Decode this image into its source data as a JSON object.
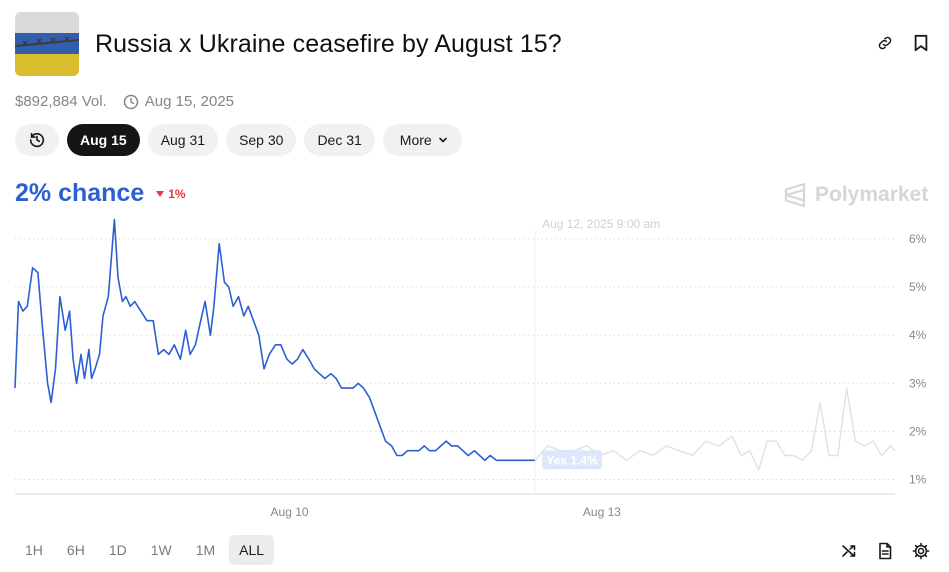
{
  "market": {
    "title": "Russia x Ukraine ceasefire by August 15?",
    "volume": "$892,884 Vol.",
    "end_date": "Aug 15, 2025"
  },
  "date_tabs": [
    "Aug 15",
    "Aug 31",
    "Sep 30",
    "Dec 31"
  ],
  "more_label": "More",
  "active_date_tab": "Aug 15",
  "chance": {
    "value": "2% chance",
    "delta": "1%",
    "delta_direction": "down"
  },
  "brand": "Polymarket",
  "time_ranges": [
    "1H",
    "6H",
    "1D",
    "1W",
    "1M",
    "ALL"
  ],
  "active_time_range": "ALL",
  "colors": {
    "accent": "#2c5fd1",
    "negative": "#e23b3b",
    "active_pill": "#151515"
  },
  "icons": {
    "header": [
      "link-icon",
      "bookmark-icon"
    ],
    "history": "history-icon",
    "footer": [
      "shuffle-icon",
      "document-icon",
      "settings-icon"
    ]
  },
  "chart_data": {
    "type": "line",
    "title": "",
    "xlabel": "",
    "ylabel": "",
    "x_tick_labels": [
      "Aug 10",
      "Aug 13"
    ],
    "y_ticks": [
      1,
      2,
      3,
      4,
      5,
      6
    ],
    "y_tick_labels": [
      "1%",
      "2%",
      "3%",
      "4%",
      "5%",
      "6%"
    ],
    "ylim": [
      0.7,
      6.6
    ],
    "x_range": [
      0,
      100
    ],
    "x_tick_positions": [
      31.2,
      66.7
    ],
    "grid": "horizontal dotted",
    "hover": {
      "x": 59.1,
      "time_label": "Aug 12, 2025 9:00 am",
      "series_label": "Yes 1.4%"
    },
    "series": [
      {
        "name": "Yes",
        "x": [
          0,
          0.4,
          0.9,
          1.4,
          2.0,
          2.6,
          3.1,
          3.7,
          4.1,
          4.6,
          5.1,
          5.7,
          6.2,
          6.6,
          7.0,
          7.5,
          7.9,
          8.4,
          8.7,
          9.1,
          9.6,
          10.0,
          10.6,
          11.3,
          11.7,
          12.2,
          12.6,
          13.1,
          13.6,
          14.3,
          15.0,
          15.7,
          16.3,
          16.9,
          17.5,
          18.1,
          18.8,
          19.4,
          19.9,
          20.5,
          21.1,
          21.6,
          22.2,
          22.6,
          23.2,
          23.8,
          24.3,
          24.8,
          25.4,
          26.0,
          26.5,
          27.1,
          27.7,
          28.3,
          28.9,
          29.6,
          30.2,
          30.9,
          31.5,
          32.1,
          32.7,
          33.4,
          34.0,
          34.6,
          35.2,
          35.9,
          36.5,
          37.1,
          37.7,
          38.4,
          39.0,
          39.6,
          40.3,
          40.9,
          41.5,
          42.1,
          42.8,
          43.4,
          44.0,
          44.6,
          45.3,
          45.9,
          46.5,
          47.1,
          47.8,
          48.4,
          49.0,
          49.6,
          50.3,
          50.9,
          51.5,
          52.2,
          52.8,
          53.4,
          54.0,
          54.7,
          55.3,
          55.9,
          56.5,
          57.2,
          57.8,
          58.4,
          59.1
        ],
        "y": [
          2.9,
          4.7,
          4.5,
          4.6,
          5.4,
          5.3,
          4.2,
          3.0,
          2.6,
          3.3,
          4.8,
          4.1,
          4.5,
          3.5,
          3.0,
          3.6,
          3.1,
          3.7,
          3.1,
          3.3,
          3.6,
          4.4,
          4.8,
          6.4,
          5.2,
          4.7,
          4.8,
          4.6,
          4.7,
          4.5,
          4.3,
          4.3,
          3.6,
          3.7,
          3.6,
          3.8,
          3.5,
          4.1,
          3.6,
          3.8,
          4.3,
          4.7,
          4.0,
          4.6,
          5.9,
          5.1,
          5.0,
          4.6,
          4.8,
          4.4,
          4.6,
          4.3,
          4.0,
          3.3,
          3.6,
          3.8,
          3.8,
          3.5,
          3.4,
          3.5,
          3.7,
          3.5,
          3.3,
          3.2,
          3.1,
          3.2,
          3.1,
          2.9,
          2.9,
          2.9,
          3.0,
          2.9,
          2.7,
          2.4,
          2.1,
          1.8,
          1.7,
          1.5,
          1.5,
          1.6,
          1.6,
          1.6,
          1.7,
          1.6,
          1.6,
          1.7,
          1.8,
          1.7,
          1.7,
          1.6,
          1.5,
          1.6,
          1.5,
          1.4,
          1.5,
          1.4,
          1.4,
          1.4,
          1.4,
          1.4,
          1.4,
          1.4,
          1.4
        ]
      },
      {
        "name": "",
        "x": [
          59.1,
          60.5,
          62.0,
          63.5,
          65.0,
          66.5,
          68.0,
          69.5,
          71.0,
          72.5,
          74.0,
          75.5,
          77.0,
          78.5,
          80.0,
          81.5,
          82.5,
          83.5,
          84.5,
          85.5,
          86.5,
          87.5,
          88.5,
          89.5,
          90.5,
          91.5,
          92.5,
          93.5,
          94.5,
          95.5,
          96.5,
          97.5,
          98.5,
          99.5,
          100.0
        ],
        "y": [
          1.4,
          1.7,
          1.6,
          1.6,
          1.7,
          1.5,
          1.6,
          1.4,
          1.6,
          1.5,
          1.7,
          1.6,
          1.5,
          1.8,
          1.7,
          1.9,
          1.5,
          1.6,
          1.2,
          1.8,
          1.8,
          1.5,
          1.5,
          1.4,
          1.6,
          2.6,
          1.5,
          1.5,
          2.9,
          1.8,
          1.7,
          1.8,
          1.5,
          1.7,
          1.6
        ]
      }
    ]
  }
}
